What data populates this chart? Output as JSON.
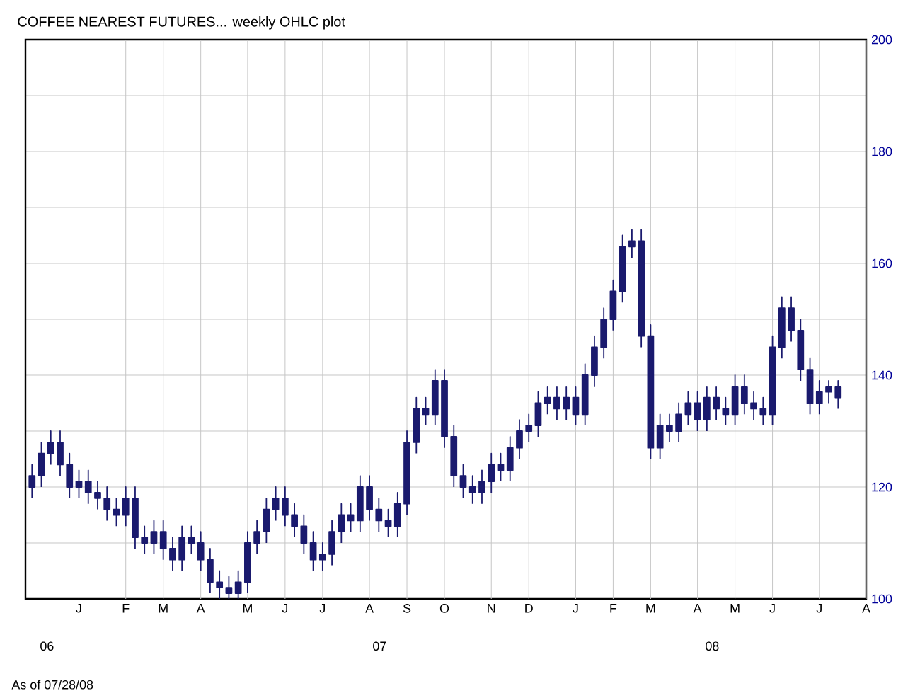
{
  "chart_data": {
    "type": "candlestick",
    "title": "COFFEE NEAREST FUTURES... weekly OHLC plot",
    "categories": [
      null,
      null,
      null,
      null,
      null,
      "J",
      null,
      null,
      null,
      null,
      "F",
      null,
      null,
      null,
      "M",
      null,
      null,
      null,
      "A",
      null,
      null,
      null,
      null,
      "M",
      null,
      null,
      null,
      "J",
      null,
      null,
      null,
      "J",
      null,
      null,
      null,
      null,
      "A",
      null,
      null,
      null,
      "S",
      null,
      null,
      null,
      "O",
      null,
      null,
      null,
      null,
      "N",
      null,
      null,
      null,
      "D",
      null,
      null,
      null,
      null,
      "J",
      null,
      null,
      null,
      "F",
      null,
      null,
      null,
      "M",
      null,
      null,
      null,
      null,
      "A",
      null,
      null,
      null,
      "M",
      null,
      null,
      null,
      "J",
      null,
      null,
      null,
      null,
      "J",
      null,
      null,
      null,
      null,
      "A"
    ],
    "ohlc": [
      [
        120,
        124,
        118,
        122
      ],
      [
        122,
        128,
        120,
        126
      ],
      [
        126,
        130,
        124,
        128
      ],
      [
        128,
        130,
        122,
        124
      ],
      [
        124,
        126,
        118,
        120
      ],
      [
        120,
        123,
        118,
        121
      ],
      [
        121,
        123,
        117,
        119
      ],
      [
        119,
        121,
        116,
        118
      ],
      [
        118,
        120,
        114,
        116
      ],
      [
        116,
        118,
        113,
        115
      ],
      [
        115,
        120,
        113,
        118
      ],
      [
        118,
        120,
        109,
        111
      ],
      [
        111,
        113,
        108,
        110
      ],
      [
        110,
        114,
        108,
        112
      ],
      [
        112,
        114,
        107,
        109
      ],
      [
        109,
        111,
        105,
        107
      ],
      [
        107,
        113,
        105,
        111
      ],
      [
        111,
        113,
        108,
        110
      ],
      [
        110,
        112,
        105,
        107
      ],
      [
        107,
        109,
        101,
        103
      ],
      [
        103,
        105,
        100,
        102
      ],
      [
        102,
        104,
        100,
        101
      ],
      [
        101,
        105,
        100,
        103
      ],
      [
        103,
        112,
        101,
        110
      ],
      [
        110,
        114,
        108,
        112
      ],
      [
        112,
        118,
        110,
        116
      ],
      [
        116,
        120,
        114,
        118
      ],
      [
        118,
        120,
        113,
        115
      ],
      [
        115,
        117,
        111,
        113
      ],
      [
        113,
        115,
        108,
        110
      ],
      [
        110,
        112,
        105,
        107
      ],
      [
        107,
        110,
        105,
        108
      ],
      [
        108,
        114,
        106,
        112
      ],
      [
        112,
        117,
        110,
        115
      ],
      [
        115,
        117,
        112,
        114
      ],
      [
        114,
        122,
        112,
        120
      ],
      [
        120,
        122,
        114,
        116
      ],
      [
        116,
        118,
        112,
        114
      ],
      [
        114,
        116,
        111,
        113
      ],
      [
        113,
        119,
        111,
        117
      ],
      [
        117,
        130,
        115,
        128
      ],
      [
        128,
        136,
        126,
        134
      ],
      [
        134,
        136,
        131,
        133
      ],
      [
        133,
        141,
        131,
        139
      ],
      [
        139,
        141,
        127,
        129
      ],
      [
        129,
        131,
        120,
        122
      ],
      [
        122,
        124,
        118,
        120
      ],
      [
        120,
        122,
        117,
        119
      ],
      [
        119,
        123,
        117,
        121
      ],
      [
        121,
        126,
        119,
        124
      ],
      [
        124,
        126,
        121,
        123
      ],
      [
        123,
        129,
        121,
        127
      ],
      [
        127,
        132,
        125,
        130
      ],
      [
        130,
        133,
        128,
        131
      ],
      [
        131,
        137,
        129,
        135
      ],
      [
        135,
        138,
        133,
        136
      ],
      [
        136,
        138,
        132,
        134
      ],
      [
        134,
        138,
        132,
        136
      ],
      [
        136,
        138,
        131,
        133
      ],
      [
        133,
        142,
        131,
        140
      ],
      [
        140,
        147,
        138,
        145
      ],
      [
        145,
        152,
        143,
        150
      ],
      [
        150,
        157,
        148,
        155
      ],
      [
        155,
        165,
        153,
        163
      ],
      [
        163,
        166,
        161,
        164
      ],
      [
        164,
        166,
        145,
        147
      ],
      [
        147,
        149,
        125,
        127
      ],
      [
        127,
        133,
        125,
        131
      ],
      [
        131,
        133,
        128,
        130
      ],
      [
        130,
        135,
        128,
        133
      ],
      [
        133,
        137,
        131,
        135
      ],
      [
        135,
        137,
        130,
        132
      ],
      [
        132,
        138,
        130,
        136
      ],
      [
        136,
        138,
        132,
        134
      ],
      [
        134,
        136,
        131,
        133
      ],
      [
        133,
        140,
        131,
        138
      ],
      [
        138,
        140,
        133,
        135
      ],
      [
        135,
        137,
        132,
        134
      ],
      [
        134,
        136,
        131,
        133
      ],
      [
        133,
        147,
        131,
        145
      ],
      [
        145,
        154,
        143,
        152
      ],
      [
        152,
        154,
        146,
        148
      ],
      [
        148,
        150,
        139,
        141
      ],
      [
        141,
        143,
        133,
        135
      ],
      [
        135,
        139,
        133,
        137
      ],
      [
        137,
        139,
        135,
        138
      ],
      [
        138,
        139,
        134,
        136
      ],
      null,
      null,
      null
    ],
    "color": "#1a1a6e",
    "ylim": [
      100,
      200
    ],
    "yticks": [
      100,
      {
        "value": 110,
        "label": null
      },
      120,
      {
        "value": 130,
        "label": null
      },
      140,
      {
        "value": 150,
        "label": null
      },
      160,
      {
        "value": 170,
        "label": null
      },
      180,
      {
        "value": 190,
        "label": null
      },
      200
    ],
    "grid": true,
    "annotations": [
      "06",
      "07",
      "08",
      "As of 07/28/08"
    ]
  }
}
